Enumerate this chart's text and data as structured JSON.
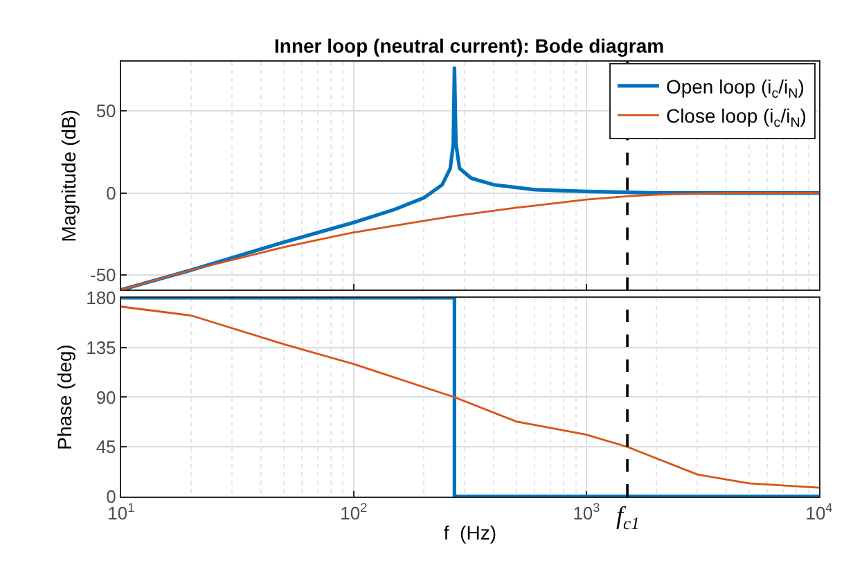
{
  "chart_data": [
    {
      "type": "line",
      "title": "Inner loop (neutral current): Bode diagram",
      "ylabel": "Magnitude (dB)",
      "log": "x",
      "grid": true,
      "legend": "top right",
      "tick_labels": "y",
      "line_style": "solid",
      "marker": "none",
      "xlim": [
        10,
        10000
      ],
      "xticks": [
        {
          "value": 10,
          "label": "10$^{1}$"
        },
        {
          "value": 100,
          "label": "10$^{2}$"
        },
        {
          "value": 1000,
          "label": "10$^{3}$"
        },
        {
          "value": 10000,
          "label": "10$^{4}$"
        }
      ],
      "ylim": [
        -59,
        80
      ],
      "yticks": [
        -50,
        0,
        50
      ],
      "series": [
        {
          "name": "Open loop (i$_{c}$/i$_{N}$)",
          "color": "#0072bd",
          "x": [
            10,
            20,
            50,
            100,
            150,
            200,
            240,
            260,
            268,
            271,
            275,
            285,
            320,
            400,
            600,
            1000,
            2000,
            10000
          ],
          "values": [
            -59,
            -47,
            -30,
            -18,
            -10,
            -3,
            5,
            15,
            30,
            77,
            30,
            15,
            9,
            5,
            2,
            1,
            0,
            0
          ]
        },
        {
          "name": "Close loop (i$_{c}$/i$_{N}$)",
          "color": "#d95319",
          "x": [
            10,
            20,
            50,
            100,
            200,
            271,
            500,
            1000,
            1500,
            2000,
            4000,
            10000
          ],
          "values": [
            -59,
            -47,
            -33,
            -24,
            -17,
            -14,
            -9,
            -4,
            -2,
            -1,
            0,
            0
          ]
        }
      ],
      "ref_lines": [
        {
          "axis": "x",
          "value": 1500,
          "color": "#000000",
          "line_style": "dashed"
        }
      ]
    },
    {
      "type": "line",
      "xlabel": "f  (Hz)",
      "ylabel": "Phase (deg)",
      "log": "x",
      "grid": true,
      "line_style": "solid",
      "marker": "none",
      "xlim": [
        10,
        10000
      ],
      "xticks": [
        {
          "value": 10,
          "label": "10$^{1}$"
        },
        {
          "value": 100,
          "label": "10$^{2}$"
        },
        {
          "value": 1000,
          "label": "10$^{3}$"
        },
        {
          "value": 10000,
          "label": "10$^{4}$"
        }
      ],
      "ylim": [
        0,
        180
      ],
      "yticks": [
        0,
        45,
        90,
        135,
        180
      ],
      "series": [
        {
          "color": "#0072bd",
          "x": [
            10,
            271,
            271,
            10000
          ],
          "values": [
            180,
            180,
            0,
            0
          ]
        },
        {
          "color": "#d95319",
          "x": [
            10,
            20,
            50,
            100,
            271,
            500,
            1000,
            1500,
            3000,
            5000,
            10000
          ],
          "values": [
            172,
            164,
            138,
            120,
            90,
            68,
            56,
            45,
            20,
            12,
            8
          ]
        }
      ],
      "ref_lines": [
        {
          "axis": "x",
          "value": 1500,
          "label": "f$_{c1}$",
          "color": "#000000",
          "line_style": "dashed"
        }
      ]
    }
  ]
}
